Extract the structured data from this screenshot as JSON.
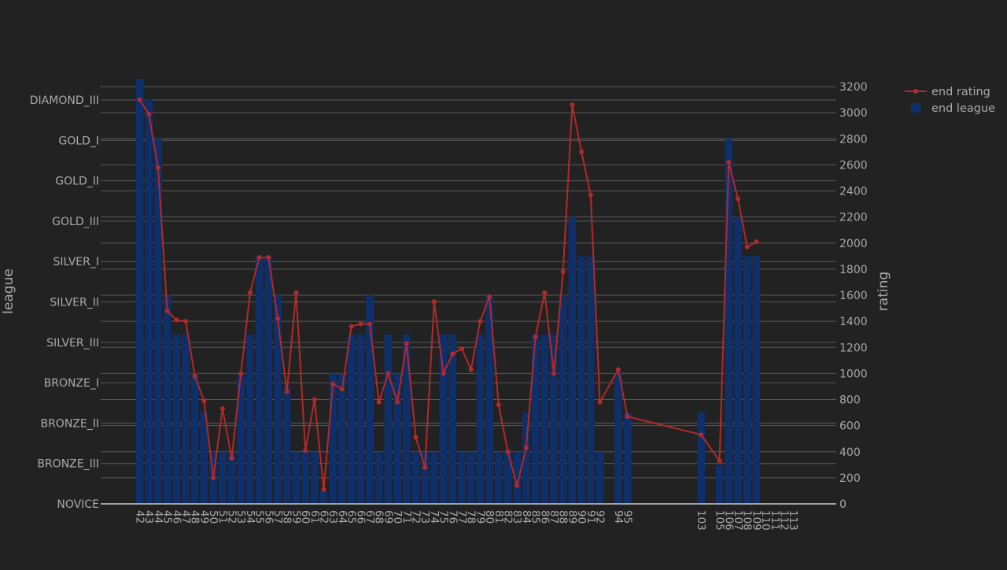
{
  "chart_data": {
    "type": "bar",
    "combo": "bar+line",
    "grid": true,
    "legend_placement": "top-right",
    "xlabel": "",
    "y_left": {
      "label": "league",
      "categories": [
        "NOVICE",
        "BRONZE_III",
        "BRONZE_II",
        "BRONZE_I",
        "SILVER_III",
        "SILVER_II",
        "SILVER_I",
        "GOLD_III",
        "GOLD_II",
        "GOLD_I",
        "DIAMOND_III"
      ]
    },
    "y_right": {
      "label": "rating",
      "ylim": [
        0,
        3200
      ],
      "ticks": [
        0,
        200,
        400,
        600,
        800,
        1000,
        1200,
        1400,
        1600,
        1800,
        2000,
        2200,
        2400,
        2600,
        2800,
        3000,
        3200
      ]
    },
    "x_tick_labels": [
      "42",
      "43",
      "44",
      "45",
      "46",
      "47",
      "48",
      "49",
      "50",
      "51",
      "52",
      "53",
      "54",
      "55",
      "56",
      "57",
      "58",
      "59",
      "60",
      "61",
      "62",
      "63",
      "64",
      "65",
      "66",
      "67",
      "68",
      "69",
      "70",
      "71",
      "72",
      "73",
      "74",
      "75",
      "76",
      "77",
      "78",
      "79",
      "80",
      "81",
      "82",
      "83",
      "84",
      "85",
      "86",
      "87",
      "88",
      "89",
      "90",
      "91",
      "92",
      "94",
      "95",
      "103",
      "105",
      "106",
      "107",
      "108",
      "109",
      "110",
      "111",
      "112",
      "113"
    ],
    "series": [
      {
        "name": "end league",
        "kind": "bar",
        "color": "#0f2f6b",
        "data": [
          {
            "x": 42,
            "rating_scale": 3260
          },
          {
            "x": 43,
            "rating_scale": 3100
          },
          {
            "x": 44,
            "rating_scale": 2800
          },
          {
            "x": 45,
            "rating_scale": 1600
          },
          {
            "x": 46,
            "rating_scale": 1300
          },
          {
            "x": 47,
            "rating_scale": 1300
          },
          {
            "x": 48,
            "rating_scale": 1000
          },
          {
            "x": 49,
            "rating_scale": 700
          },
          {
            "x": 50,
            "rating_scale": 400
          },
          {
            "x": 51,
            "rating_scale": 400
          },
          {
            "x": 52,
            "rating_scale": 400
          },
          {
            "x": 53,
            "rating_scale": 1000
          },
          {
            "x": 54,
            "rating_scale": 1300
          },
          {
            "x": 55,
            "rating_scale": 1900
          },
          {
            "x": 56,
            "rating_scale": 1900
          },
          {
            "x": 57,
            "rating_scale": 1600
          },
          {
            "x": 58,
            "rating_scale": 900
          },
          {
            "x": 59,
            "rating_scale": 400
          },
          {
            "x": 60,
            "rating_scale": 400
          },
          {
            "x": 61,
            "rating_scale": 400
          },
          {
            "x": 62,
            "rating_scale": 100
          },
          {
            "x": 63,
            "rating_scale": 1000
          },
          {
            "x": 64,
            "rating_scale": 1000
          },
          {
            "x": 65,
            "rating_scale": 1300
          },
          {
            "x": 66,
            "rating_scale": 1300
          },
          {
            "x": 67,
            "rating_scale": 1600
          },
          {
            "x": 68,
            "rating_scale": 400
          },
          {
            "x": 69,
            "rating_scale": 1300
          },
          {
            "x": 70,
            "rating_scale": 1000
          },
          {
            "x": 71,
            "rating_scale": 1300
          },
          {
            "x": 72,
            "rating_scale": 400
          },
          {
            "x": 73,
            "rating_scale": 400
          },
          {
            "x": 74,
            "rating_scale": 400
          },
          {
            "x": 75,
            "rating_scale": 1300
          },
          {
            "x": 76,
            "rating_scale": 1300
          },
          {
            "x": 77,
            "rating_scale": 400
          },
          {
            "x": 78,
            "rating_scale": 400
          },
          {
            "x": 79,
            "rating_scale": 1300
          },
          {
            "x": 80,
            "rating_scale": 1600
          },
          {
            "x": 81,
            "rating_scale": 400
          },
          {
            "x": 82,
            "rating_scale": 400
          },
          {
            "x": 83,
            "rating_scale": 400
          },
          {
            "x": 84,
            "rating_scale": 700
          },
          {
            "x": 85,
            "rating_scale": 1300
          },
          {
            "x": 86,
            "rating_scale": 1300
          },
          {
            "x": 87,
            "rating_scale": 1300
          },
          {
            "x": 88,
            "rating_scale": 1600
          },
          {
            "x": 89,
            "rating_scale": 2200
          },
          {
            "x": 90,
            "rating_scale": 1900
          },
          {
            "x": 91,
            "rating_scale": 1900
          },
          {
            "x": 92,
            "rating_scale": 400
          },
          {
            "x": 94,
            "rating_scale": 1000
          },
          {
            "x": 95,
            "rating_scale": 700
          },
          {
            "x": 103,
            "rating_scale": 700
          },
          {
            "x": 105,
            "rating_scale": 300
          },
          {
            "x": 106,
            "rating_scale": 2800
          },
          {
            "x": 107,
            "rating_scale": 2200
          },
          {
            "x": 108,
            "rating_scale": 1900
          },
          {
            "x": 109,
            "rating_scale": 1900
          }
        ]
      },
      {
        "name": "end rating",
        "kind": "line",
        "color": "#b22a2a",
        "data": [
          {
            "x": 42,
            "y": 3100
          },
          {
            "x": 43,
            "y": 2990
          },
          {
            "x": 44,
            "y": 2580
          },
          {
            "x": 45,
            "y": 1480
          },
          {
            "x": 46,
            "y": 1410
          },
          {
            "x": 47,
            "y": 1400
          },
          {
            "x": 48,
            "y": 980
          },
          {
            "x": 49,
            "y": 790
          },
          {
            "x": 50,
            "y": 200
          },
          {
            "x": 51,
            "y": 730
          },
          {
            "x": 52,
            "y": 350
          },
          {
            "x": 53,
            "y": 1000
          },
          {
            "x": 54,
            "y": 1620
          },
          {
            "x": 55,
            "y": 1890
          },
          {
            "x": 56,
            "y": 1890
          },
          {
            "x": 57,
            "y": 1420
          },
          {
            "x": 58,
            "y": 860
          },
          {
            "x": 59,
            "y": 1620
          },
          {
            "x": 60,
            "y": 410
          },
          {
            "x": 61,
            "y": 800
          },
          {
            "x": 62,
            "y": 110
          },
          {
            "x": 63,
            "y": 920
          },
          {
            "x": 64,
            "y": 880
          },
          {
            "x": 65,
            "y": 1360
          },
          {
            "x": 66,
            "y": 1380
          },
          {
            "x": 67,
            "y": 1380
          },
          {
            "x": 68,
            "y": 780
          },
          {
            "x": 69,
            "y": 1000
          },
          {
            "x": 70,
            "y": 780
          },
          {
            "x": 71,
            "y": 1230
          },
          {
            "x": 72,
            "y": 510
          },
          {
            "x": 73,
            "y": 280
          },
          {
            "x": 74,
            "y": 1550
          },
          {
            "x": 75,
            "y": 1000
          },
          {
            "x": 76,
            "y": 1150
          },
          {
            "x": 77,
            "y": 1190
          },
          {
            "x": 78,
            "y": 1030
          },
          {
            "x": 79,
            "y": 1400
          },
          {
            "x": 80,
            "y": 1590
          },
          {
            "x": 81,
            "y": 760
          },
          {
            "x": 82,
            "y": 400
          },
          {
            "x": 83,
            "y": 140
          },
          {
            "x": 84,
            "y": 430
          },
          {
            "x": 85,
            "y": 1280
          },
          {
            "x": 86,
            "y": 1620
          },
          {
            "x": 87,
            "y": 1000
          },
          {
            "x": 88,
            "y": 1780
          },
          {
            "x": 89,
            "y": 3060
          },
          {
            "x": 90,
            "y": 2700
          },
          {
            "x": 91,
            "y": 2370
          },
          {
            "x": 92,
            "y": 780
          },
          {
            "x": 94,
            "y": 1030
          },
          {
            "x": 95,
            "y": 670
          },
          {
            "x": 103,
            "y": 530
          },
          {
            "x": 105,
            "y": 330
          },
          {
            "x": 106,
            "y": 2620
          },
          {
            "x": 107,
            "y": 2340
          },
          {
            "x": 108,
            "y": 1970
          },
          {
            "x": 109,
            "y": 2010
          }
        ]
      }
    ]
  }
}
